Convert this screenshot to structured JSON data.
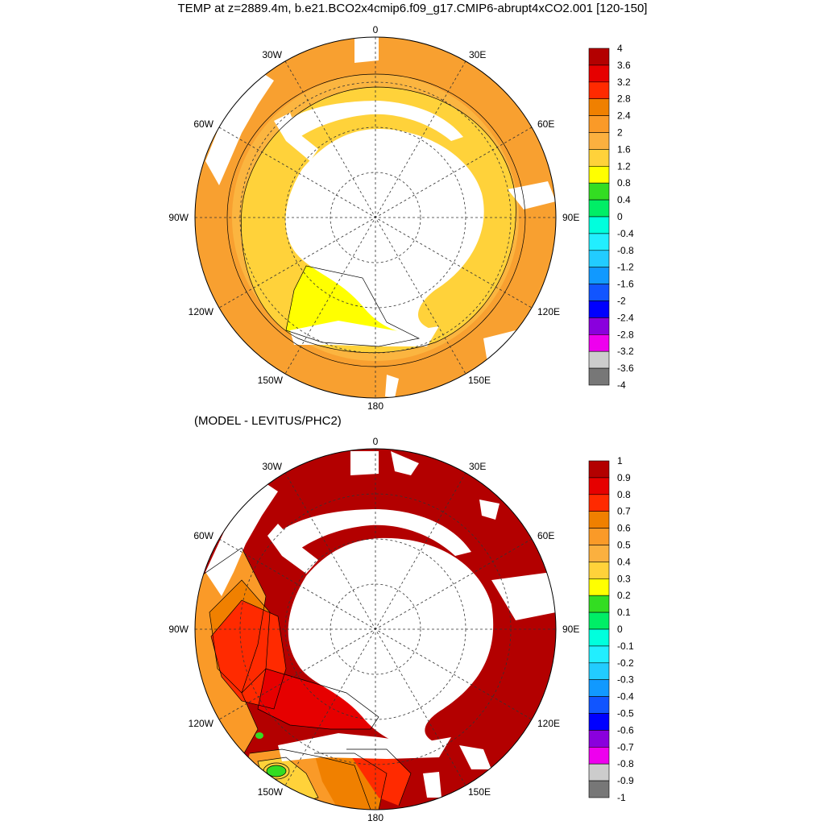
{
  "title": "TEMP at z=2889.4m, b.e21.BCO2x4cmip6.f09_g17.CMIP6-abrupt4xCO2.001 [120-150]",
  "subtitle": "(MODEL - LEVITUS/PHC2)",
  "longitude_labels": {
    "lon_0": "0",
    "lon_30e": "30E",
    "lon_60e": "60E",
    "lon_90e": "90E",
    "lon_120e": "120E",
    "lon_150e": "150E",
    "lon_180": "180",
    "lon_150w": "150W",
    "lon_120w": "120W",
    "lon_90w": "90W",
    "lon_60w": "60W",
    "lon_30w": "30W"
  },
  "colorbar_colors": [
    "#b30000",
    "#e60000",
    "#ff2a00",
    "#f08000",
    "#fa9a28",
    "#fbb03f",
    "#ffd23a",
    "#ffff00",
    "#33dd22",
    "#00ee66",
    "#00ffdd",
    "#22eeff",
    "#22ccff",
    "#1199ff",
    "#1155ff",
    "#0000ff",
    "#8a00dd",
    "#ee00ee",
    "#cccccc",
    "#777777"
  ],
  "colorbar_top_labels": [
    "4",
    "3.6",
    "3.2",
    "2.8",
    "2.4",
    "2",
    "1.6",
    "1.2",
    "0.8",
    "0.4",
    "0",
    "-0.4",
    "-0.8",
    "-1.2",
    "-1.6",
    "-2",
    "-2.4",
    "-2.8",
    "-3.2",
    "-3.6",
    "-4"
  ],
  "colorbar_bottom_labels": [
    "1",
    "0.9",
    "0.8",
    "0.7",
    "0.6",
    "0.5",
    "0.4",
    "0.3",
    "0.2",
    "0.1",
    "0",
    "-0.1",
    "-0.2",
    "-0.3",
    "-0.4",
    "-0.5",
    "-0.6",
    "-0.7",
    "-0.8",
    "-0.9",
    "-1"
  ],
  "map_colors": {
    "top_outer": "#f8a030",
    "top_mid": "#fbb540",
    "top_inner": "#ffd23a",
    "top_yellow": "#ffff00",
    "bottom_main": "#b30000",
    "bottom_red2": "#ff2a00",
    "bottom_red1": "#e60000",
    "bottom_orange": "#f08000",
    "bottom_lightorange": "#fa9a28",
    "bottom_yellow": "#ffd23a",
    "bottom_green": "#33dd22",
    "land": "#ffffff"
  }
}
